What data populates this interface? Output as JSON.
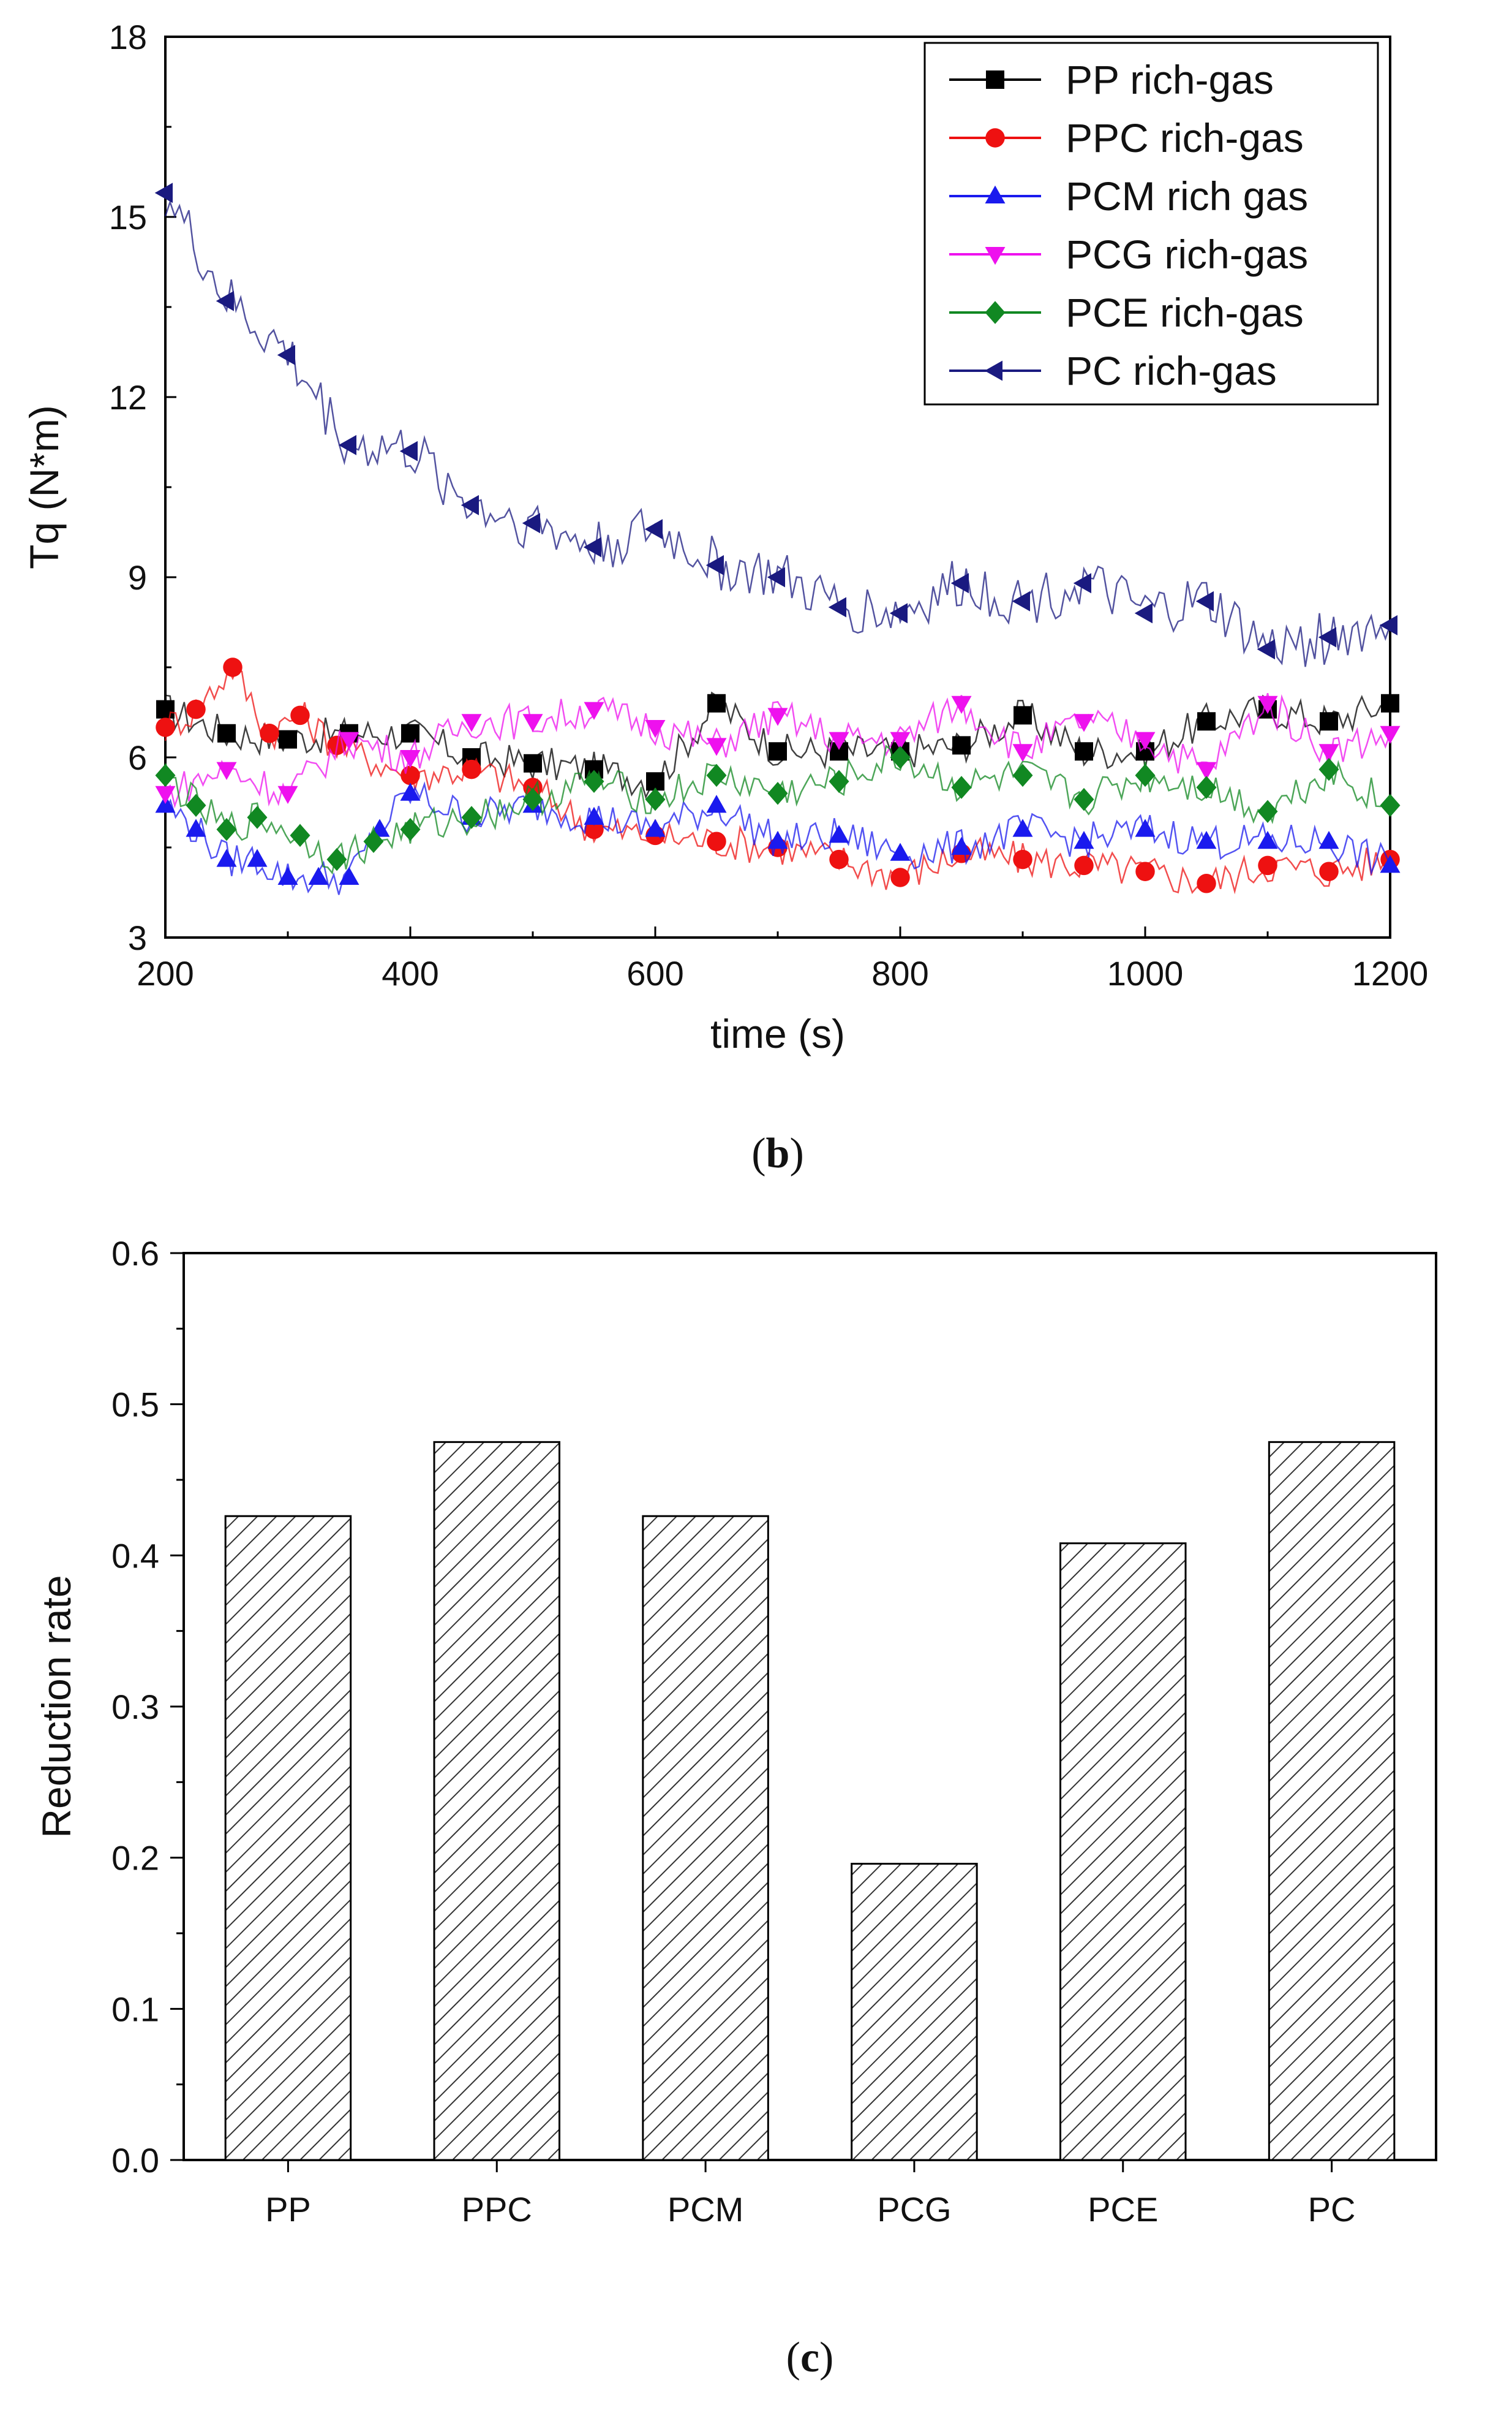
{
  "chart_data": [
    {
      "type": "line",
      "title": "",
      "caption": "b",
      "xlabel": "time (s)",
      "ylabel": "Tq (N*m)",
      "xlim": [
        200,
        1200
      ],
      "ylim": [
        3,
        18
      ],
      "xticks": [
        "200",
        "400",
        "600",
        "800",
        "1000",
        "1200"
      ],
      "yticks": [
        "3",
        "6",
        "9",
        "12",
        "15",
        "18"
      ],
      "legend_position": "top-right",
      "series": [
        {
          "name": "PP rich-gas",
          "color": "#000000",
          "marker": "square",
          "x": [
            200,
            250,
            300,
            350,
            400,
            450,
            500,
            550,
            600,
            650,
            700,
            750,
            800,
            850,
            900,
            950,
            1000,
            1050,
            1100,
            1150,
            1200
          ],
          "y": [
            6.8,
            6.4,
            6.3,
            6.4,
            6.4,
            6.0,
            5.9,
            5.8,
            5.6,
            6.9,
            6.1,
            6.1,
            6.1,
            6.2,
            6.7,
            6.1,
            6.1,
            6.6,
            6.8,
            6.6,
            6.9
          ]
        },
        {
          "name": "PPC rich-gas",
          "color": "#ee1111",
          "marker": "circle",
          "x": [
            200,
            225,
            255,
            285,
            310,
            340,
            400,
            450,
            500,
            550,
            600,
            650,
            700,
            750,
            800,
            850,
            900,
            950,
            1000,
            1050,
            1100,
            1150,
            1200
          ],
          "y": [
            6.5,
            6.8,
            7.5,
            6.4,
            6.7,
            6.2,
            5.7,
            5.8,
            5.5,
            4.8,
            4.7,
            4.6,
            4.5,
            4.3,
            4.0,
            4.4,
            4.3,
            4.2,
            4.1,
            3.9,
            4.2,
            4.1,
            4.3
          ]
        },
        {
          "name": "PCM rich gas",
          "color": "#1a1aee",
          "marker": "triangle-up",
          "x": [
            200,
            225,
            250,
            275,
            300,
            325,
            350,
            375,
            400,
            450,
            500,
            550,
            600,
            650,
            700,
            750,
            800,
            850,
            900,
            950,
            1000,
            1050,
            1100,
            1150,
            1200
          ],
          "y": [
            5.2,
            4.8,
            4.3,
            4.3,
            4.0,
            4.0,
            4.0,
            4.8,
            5.4,
            5.0,
            5.2,
            5.0,
            4.8,
            5.2,
            4.6,
            4.7,
            4.4,
            4.5,
            4.8,
            4.6,
            4.8,
            4.6,
            4.6,
            4.6,
            4.2
          ]
        },
        {
          "name": "PCG rich-gas",
          "color": "#ee11ee",
          "marker": "triangle-down",
          "x": [
            200,
            250,
            300,
            350,
            400,
            450,
            500,
            550,
            600,
            650,
            700,
            750,
            800,
            850,
            900,
            950,
            1000,
            1050,
            1100,
            1150,
            1200
          ],
          "y": [
            5.4,
            5.8,
            5.4,
            6.3,
            6.0,
            6.6,
            6.6,
            6.8,
            6.5,
            6.2,
            6.7,
            6.3,
            6.3,
            6.9,
            6.1,
            6.6,
            6.3,
            5.8,
            6.9,
            6.1,
            6.4
          ]
        },
        {
          "name": "PCE rich-gas",
          "color": "#118822",
          "marker": "diamond",
          "x": [
            200,
            225,
            250,
            275,
            310,
            340,
            370,
            400,
            450,
            500,
            550,
            600,
            650,
            700,
            750,
            800,
            850,
            900,
            950,
            1000,
            1050,
            1100,
            1150,
            1200
          ],
          "y": [
            5.7,
            5.2,
            4.8,
            5.0,
            4.7,
            4.3,
            4.6,
            4.8,
            5.0,
            5.3,
            5.6,
            5.3,
            5.7,
            5.4,
            5.6,
            6.0,
            5.5,
            5.7,
            5.3,
            5.7,
            5.5,
            5.1,
            5.8,
            5.2
          ]
        },
        {
          "name": "PC rich-gas",
          "color": "#1a1a80",
          "marker": "triangle-left",
          "x": [
            200,
            250,
            300,
            350,
            400,
            450,
            500,
            550,
            600,
            650,
            700,
            750,
            800,
            850,
            900,
            950,
            1000,
            1050,
            1100,
            1150,
            1200
          ],
          "y": [
            15.4,
            13.6,
            12.7,
            11.2,
            11.1,
            10.2,
            9.9,
            9.5,
            9.8,
            9.2,
            9.0,
            8.5,
            8.4,
            8.9,
            8.6,
            8.9,
            8.4,
            8.6,
            7.8,
            8.0,
            8.2
          ]
        }
      ]
    },
    {
      "type": "bar",
      "title": "",
      "caption": "c",
      "xlabel": "",
      "ylabel": "Reduction rate",
      "ylim": [
        0,
        0.6
      ],
      "yticks": [
        "0.0",
        "0.1",
        "0.2",
        "0.3",
        "0.4",
        "0.5",
        "0.6"
      ],
      "categories": [
        "PP",
        "PPC",
        "PCM",
        "PCG",
        "PCE",
        "PC"
      ],
      "values": [
        0.426,
        0.475,
        0.426,
        0.196,
        0.408,
        0.475
      ],
      "fill": "hatched"
    }
  ]
}
